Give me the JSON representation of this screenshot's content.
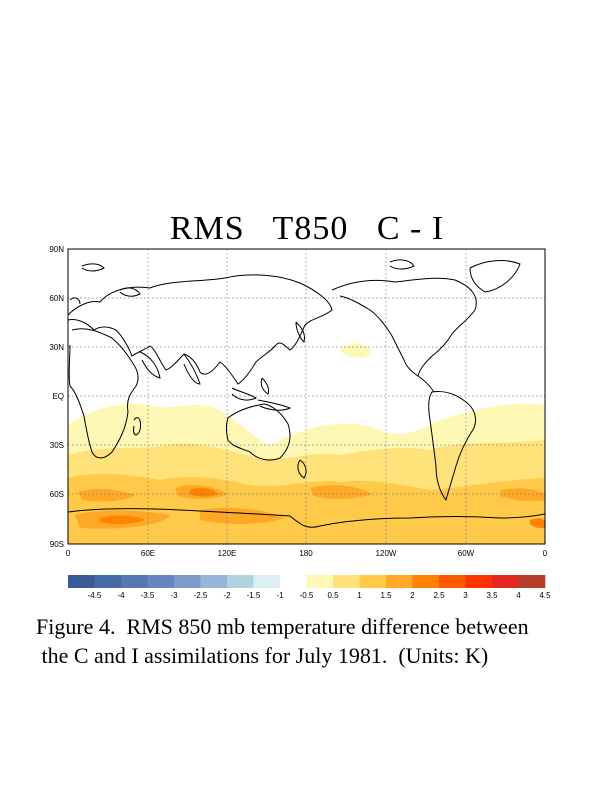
{
  "title": "RMS   T850   C - I",
  "lat_labels": [
    "90N",
    "60N",
    "30N",
    "EQ",
    "30S",
    "60S",
    "90S"
  ],
  "lon_labels": [
    "0",
    "60E",
    "120E",
    "180",
    "120W",
    "60W",
    "0"
  ],
  "colorbar": {
    "labels": [
      "-4.5",
      "-4",
      "-3.5",
      "-3",
      "-2.5",
      "-2",
      "-1.5",
      "-1",
      "-0.5",
      "0.5",
      "1",
      "1.5",
      "2",
      "2.5",
      "3",
      "3.5",
      "4",
      "4.5"
    ],
    "colors": [
      "#3a5a98",
      "#4669a8",
      "#5578b4",
      "#6686bf",
      "#7e9ccb",
      "#98b4d8",
      "#b2d2e2",
      "#dcf0f4",
      "#ffffff",
      "#fff7b4",
      "#ffe27a",
      "#ffc94a",
      "#ffa826",
      "#ff8200",
      "#ff5a00",
      "#ff3200",
      "#e0281e",
      "#b43c28"
    ]
  },
  "caption": {
    "line1": "Figure 4.  RMS 850 mb temperature difference between",
    "line2": " the C and I assimilations for July 1981.  (Units: K)"
  }
}
